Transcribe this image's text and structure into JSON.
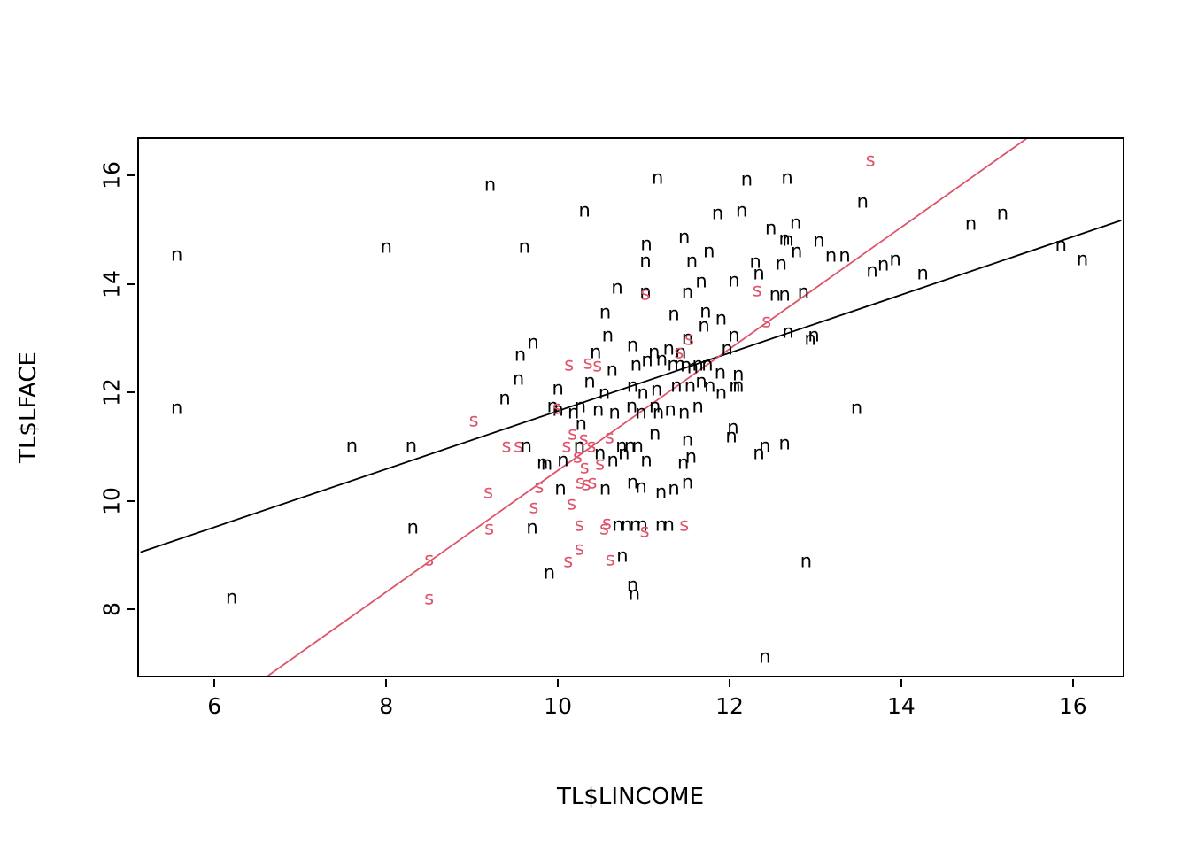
{
  "chart_data": {
    "type": "scatter",
    "title": "",
    "xlabel": "TL$LINCOME",
    "ylabel": "TL$LFACE",
    "xlim": [
      5.1,
      16.6
    ],
    "ylim": [
      6.75,
      16.7
    ],
    "x_ticks": [
      6,
      8,
      10,
      12,
      14,
      16
    ],
    "y_ticks": [
      8,
      10,
      12,
      14,
      16
    ],
    "grid": false,
    "legend": "none",
    "point_colors": {
      "n": "#000000",
      "s": "#DF536B"
    },
    "series": [
      {
        "name": "n",
        "glyph": "n",
        "color": "#000000",
        "points": [
          [
            9.19,
            15.83
          ],
          [
            11.14,
            15.96
          ],
          [
            10.29,
            15.37
          ],
          [
            12.18,
            15.93
          ],
          [
            12.65,
            15.96
          ],
          [
            13.53,
            15.52
          ],
          [
            11.84,
            15.32
          ],
          [
            12.12,
            15.36
          ],
          [
            12.46,
            15.03
          ],
          [
            12.62,
            14.84
          ],
          [
            12.66,
            14.82
          ],
          [
            12.75,
            15.13
          ],
          [
            13.02,
            14.8
          ],
          [
            14.79,
            15.11
          ],
          [
            15.16,
            15.32
          ],
          [
            5.54,
            14.55
          ],
          [
            7.98,
            14.69
          ],
          [
            9.59,
            14.69
          ],
          [
            11.01,
            14.74
          ],
          [
            11.45,
            14.88
          ],
          [
            11.0,
            14.43
          ],
          [
            11.54,
            14.43
          ],
          [
            11.74,
            14.62
          ],
          [
            12.28,
            14.41
          ],
          [
            12.32,
            14.2
          ],
          [
            12.58,
            14.39
          ],
          [
            12.76,
            14.62
          ],
          [
            13.16,
            14.53
          ],
          [
            13.32,
            14.53
          ],
          [
            13.64,
            14.26
          ],
          [
            13.77,
            14.36
          ],
          [
            13.91,
            14.46
          ],
          [
            14.23,
            14.2
          ],
          [
            15.84,
            14.72
          ],
          [
            16.09,
            14.46
          ],
          [
            10.67,
            13.95
          ],
          [
            11.0,
            13.86
          ],
          [
            11.49,
            13.86
          ],
          [
            11.65,
            14.05
          ],
          [
            12.03,
            14.07
          ],
          [
            12.51,
            13.81
          ],
          [
            12.62,
            13.81
          ],
          [
            12.84,
            13.86
          ],
          [
            10.53,
            13.48
          ],
          [
            11.33,
            13.45
          ],
          [
            11.7,
            13.5
          ],
          [
            11.88,
            13.38
          ],
          [
            11.68,
            13.24
          ],
          [
            10.56,
            13.07
          ],
          [
            10.85,
            12.88
          ],
          [
            12.66,
            13.12
          ],
          [
            12.92,
            12.99
          ],
          [
            12.96,
            13.06
          ],
          [
            9.69,
            12.93
          ],
          [
            9.54,
            12.7
          ],
          [
            10.42,
            12.75
          ],
          [
            11.1,
            12.76
          ],
          [
            11.27,
            12.81
          ],
          [
            11.49,
            13.01
          ],
          [
            11.41,
            12.75
          ],
          [
            12.03,
            13.06
          ],
          [
            11.95,
            12.81
          ],
          [
            10.61,
            12.42
          ],
          [
            10.89,
            12.52
          ],
          [
            11.02,
            12.6
          ],
          [
            11.19,
            12.63
          ],
          [
            11.32,
            12.53
          ],
          [
            11.4,
            12.53
          ],
          [
            11.47,
            12.5
          ],
          [
            11.55,
            12.47
          ],
          [
            11.61,
            12.53
          ],
          [
            11.72,
            12.53
          ],
          [
            11.87,
            12.37
          ],
          [
            12.08,
            12.34
          ],
          [
            12.04,
            12.13
          ],
          [
            9.52,
            12.27
          ],
          [
            9.98,
            12.09
          ],
          [
            10.35,
            12.22
          ],
          [
            10.52,
            12.01
          ],
          [
            10.85,
            12.13
          ],
          [
            10.97,
            12.01
          ],
          [
            11.13,
            12.06
          ],
          [
            11.36,
            12.13
          ],
          [
            11.52,
            12.13
          ],
          [
            11.65,
            12.22
          ],
          [
            11.75,
            12.13
          ],
          [
            11.88,
            12.01
          ],
          [
            12.08,
            12.13
          ],
          [
            9.36,
            11.9
          ],
          [
            9.92,
            11.75
          ],
          [
            9.98,
            11.69
          ],
          [
            10.24,
            11.75
          ],
          [
            10.16,
            11.64
          ],
          [
            10.45,
            11.69
          ],
          [
            10.64,
            11.64
          ],
          [
            10.84,
            11.75
          ],
          [
            10.95,
            11.64
          ],
          [
            11.11,
            11.75
          ],
          [
            11.15,
            11.64
          ],
          [
            11.29,
            11.69
          ],
          [
            11.45,
            11.64
          ],
          [
            11.61,
            11.75
          ],
          [
            13.46,
            11.72
          ],
          [
            10.25,
            11.43
          ],
          [
            12.02,
            11.36
          ],
          [
            5.54,
            11.72
          ],
          [
            7.58,
            11.02
          ],
          [
            8.27,
            11.02
          ],
          [
            9.61,
            11.02
          ],
          [
            10.23,
            11.02
          ],
          [
            10.72,
            11.02
          ],
          [
            10.82,
            11.02
          ],
          [
            10.91,
            11.02
          ],
          [
            11.11,
            11.26
          ],
          [
            11.49,
            11.13
          ],
          [
            12.0,
            11.21
          ],
          [
            12.32,
            10.9
          ],
          [
            12.39,
            11.02
          ],
          [
            12.62,
            11.07
          ],
          [
            9.8,
            10.72
          ],
          [
            9.85,
            10.69
          ],
          [
            10.04,
            10.77
          ],
          [
            10.47,
            10.89
          ],
          [
            10.62,
            10.77
          ],
          [
            10.75,
            10.89
          ],
          [
            11.01,
            10.77
          ],
          [
            11.44,
            10.71
          ],
          [
            11.53,
            10.82
          ],
          [
            10.01,
            10.24
          ],
          [
            10.53,
            10.24
          ],
          [
            10.85,
            10.35
          ],
          [
            10.95,
            10.28
          ],
          [
            11.18,
            10.17
          ],
          [
            11.33,
            10.24
          ],
          [
            11.49,
            10.35
          ],
          [
            8.29,
            9.53
          ],
          [
            9.68,
            9.53
          ],
          [
            10.68,
            9.57
          ],
          [
            10.78,
            9.57
          ],
          [
            10.88,
            9.57
          ],
          [
            10.96,
            9.57
          ],
          [
            11.18,
            9.57
          ],
          [
            11.27,
            9.57
          ],
          [
            10.73,
            9.0
          ],
          [
            9.88,
            8.69
          ],
          [
            12.87,
            8.9
          ],
          [
            10.85,
            8.46
          ],
          [
            10.87,
            8.3
          ],
          [
            6.18,
            8.23
          ],
          [
            12.39,
            7.14
          ]
        ]
      },
      {
        "name": "s",
        "glyph": "s",
        "color": "#DF536B",
        "points": [
          [
            13.62,
            16.29
          ],
          [
            11.0,
            13.83
          ],
          [
            12.3,
            13.9
          ],
          [
            12.41,
            13.33
          ],
          [
            10.11,
            12.53
          ],
          [
            10.33,
            12.55
          ],
          [
            10.44,
            12.5
          ],
          [
            11.51,
            13.0
          ],
          [
            11.39,
            12.76
          ],
          [
            9.97,
            11.72
          ],
          [
            9.0,
            11.49
          ],
          [
            9.38,
            11.02
          ],
          [
            9.52,
            11.02
          ],
          [
            10.08,
            11.02
          ],
          [
            10.37,
            11.02
          ],
          [
            10.58,
            11.18
          ],
          [
            10.28,
            11.16
          ],
          [
            10.15,
            11.26
          ],
          [
            10.21,
            10.82
          ],
          [
            10.29,
            10.64
          ],
          [
            10.47,
            10.69
          ],
          [
            9.17,
            10.17
          ],
          [
            9.76,
            10.28
          ],
          [
            10.24,
            10.35
          ],
          [
            10.31,
            10.32
          ],
          [
            10.38,
            10.35
          ],
          [
            9.7,
            9.89
          ],
          [
            10.14,
            9.97
          ],
          [
            9.18,
            9.5
          ],
          [
            10.23,
            9.58
          ],
          [
            10.52,
            9.5
          ],
          [
            10.55,
            9.61
          ],
          [
            10.99,
            9.45
          ],
          [
            11.45,
            9.57
          ],
          [
            10.23,
            9.13
          ],
          [
            10.1,
            8.9
          ],
          [
            10.59,
            8.93
          ],
          [
            8.48,
            8.93
          ],
          [
            8.48,
            8.21
          ]
        ]
      }
    ],
    "lines": [
      {
        "name": "black-fit-line",
        "intercept": 6.31,
        "slope": 0.535,
        "color": "#000000"
      },
      {
        "name": "red-fit-line",
        "intercept": -0.64,
        "slope": 1.12,
        "color": "#DF536B"
      }
    ]
  }
}
